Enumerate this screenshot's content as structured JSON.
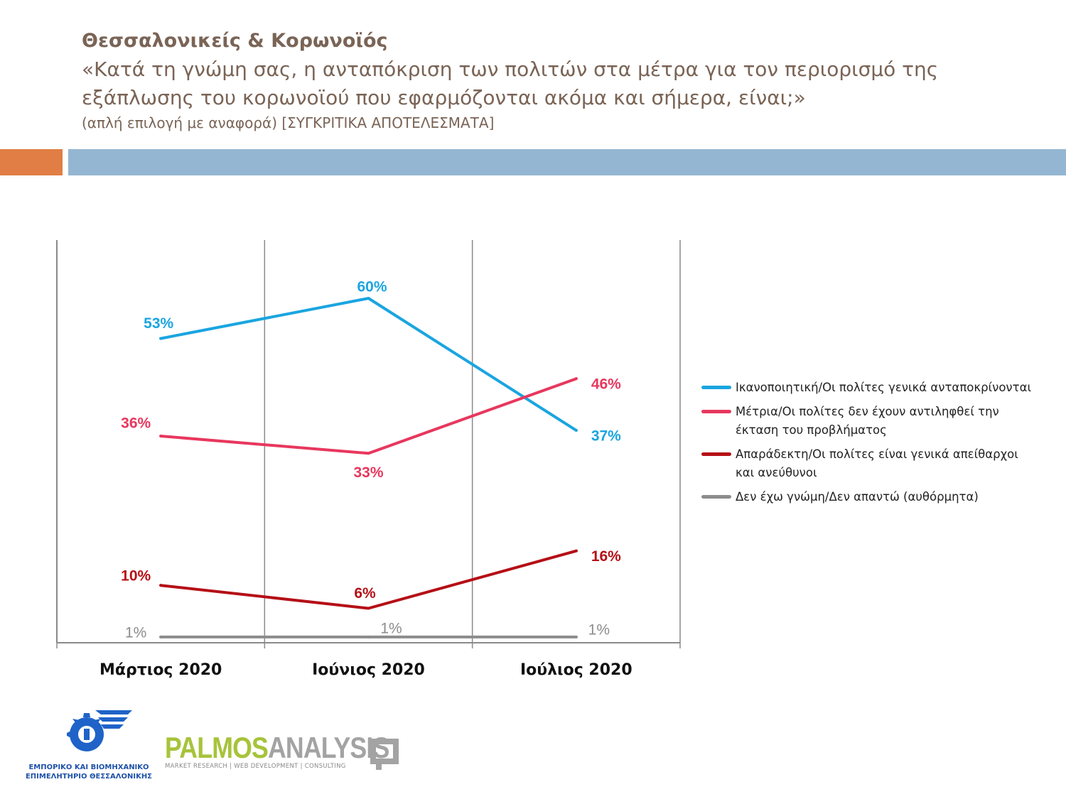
{
  "header": {
    "title": "Θεσσαλονικείς & Κορωνοϊός",
    "question_line1": "«Κατά τη γνώμη σας, η ανταπόκριση των πολιτών στα μέτρα για τον περιορισμό της",
    "question_line2": "εξάπλωσης του κορωνοϊού που εφαρμόζονται ακόμα και σήμερα, είναι;»",
    "note": "(απλή επιλογή με αναφορά) [ΣΥΓΚΡΙΤΙΚΑ ΑΠΟΤΕΛΕΣΜΑΤΑ]"
  },
  "colors": {
    "orange_bar": "#e07e45",
    "blue_bar": "#94b6d2",
    "header_text": "#7a6456"
  },
  "chart_data": {
    "type": "line",
    "categories": [
      "Μάρτιος 2020",
      "Ιούνιος 2020",
      "Ιούλιος 2020"
    ],
    "ylim": [
      0,
      65
    ],
    "unit": "%",
    "series": [
      {
        "name": "Ικανοποιητική/Οι πολίτες γενικά ανταποκρίνονται",
        "color": "#1aa5e0",
        "values": [
          53,
          60,
          37
        ],
        "labels": [
          "53%",
          "60%",
          "37%"
        ]
      },
      {
        "name": "Μέτρια/Οι πολίτες δεν έχουν αντιληφθεί την έκταση του προβλήματος",
        "color": "#e8375e",
        "values": [
          36,
          33,
          46
        ],
        "labels": [
          "36%",
          "33%",
          "46%"
        ]
      },
      {
        "name": "Απαράδεκτη/Οι πολίτες είναι γενικά απείθαρχοι και ανεύθυνοι",
        "color": "#b50f16",
        "values": [
          10,
          6,
          16
        ],
        "labels": [
          "10%",
          "6%",
          "16%"
        ]
      },
      {
        "name": "Δεν έχω γνώμη/Δεν απαντώ (αυθόρμητα)",
        "color": "#8c8c8c",
        "values": [
          1,
          1,
          1
        ],
        "labels": [
          "1%",
          "1%",
          "1%"
        ]
      }
    ],
    "legend_position": "right"
  },
  "logos": {
    "chamber_caption_line1": "ΕΜΠΟΡΙΚΟ ΚΑΙ ΒΙΟΜΗΧΑΝΙΚΟ",
    "chamber_caption_line2": "ΕΠΙΜΕΛΗΤΗΡΙΟ ΘΕΣΣΑΛΟΝΙΚΗΣ",
    "brand_part1": "PALMOS",
    "brand_part2": "ANALYSIS",
    "tagline": "MARKET RESEARCH | WEB DEVELOPMENT | CONSULTING"
  }
}
